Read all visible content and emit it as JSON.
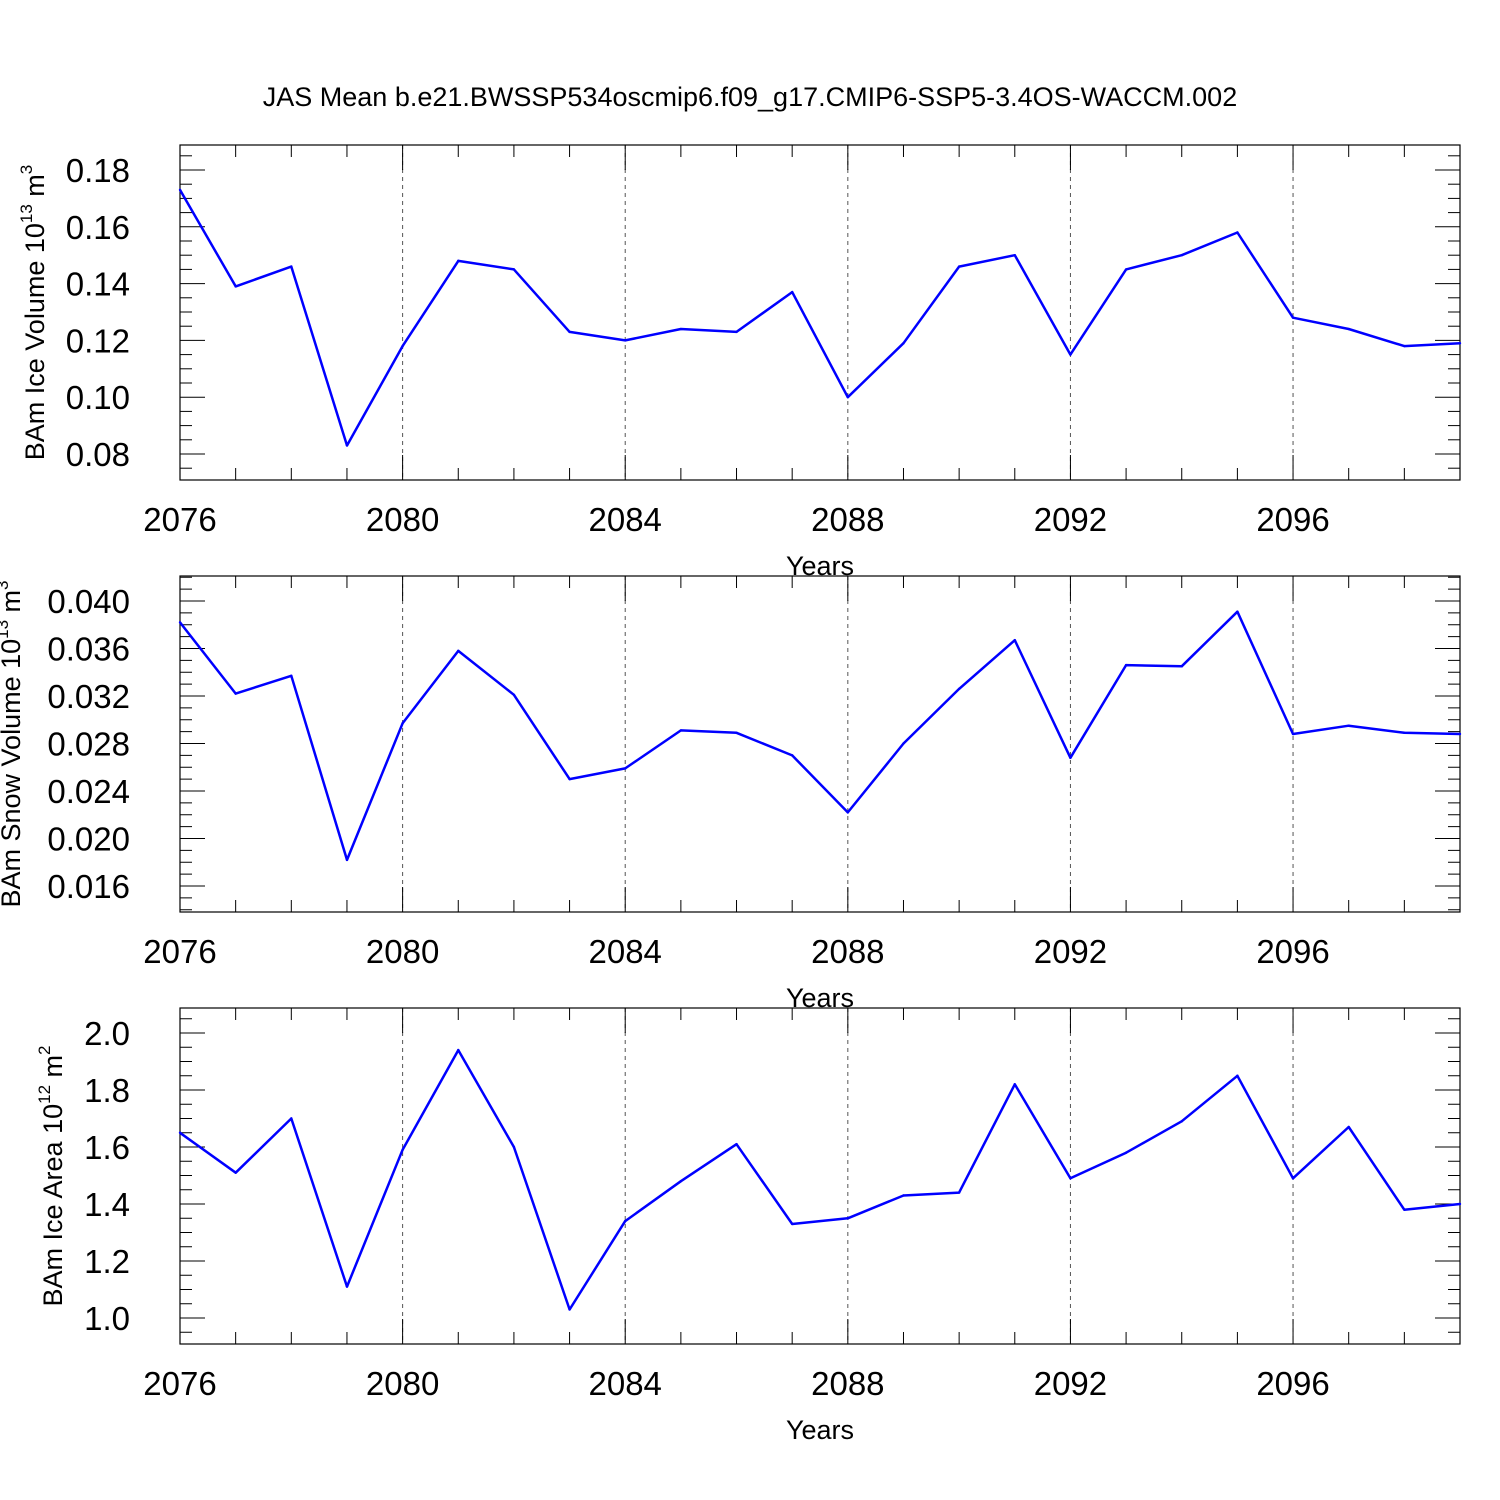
{
  "figure_title": "JAS Mean b.e21.BWSSP534oscmip6.f09_g17.CMIP6-SSP5-3.4OS-WACCM.002",
  "colors": {
    "series": "#0000ff",
    "axis": "#000000",
    "grid": "#555555"
  },
  "chart_data": [
    {
      "type": "line",
      "ylabel_main": "BAm Ice Volume 10",
      "ylabel_exp": "13",
      "ylabel_unit": " m",
      "ylabel_unit_exp": "3",
      "xlabel": "Years",
      "xlim": [
        2076,
        2099
      ],
      "ylim": [
        0.08,
        0.18
      ],
      "xticks": [
        2076,
        2080,
        2084,
        2088,
        2092,
        2096
      ],
      "xtick_labels": [
        "2076",
        "2080",
        "2084",
        "2088",
        "2092",
        "2096"
      ],
      "yticks": [
        0.08,
        0.1,
        0.12,
        0.14,
        0.16,
        0.18
      ],
      "ytick_labels": [
        "0.08",
        "0.10",
        "0.12",
        "0.14",
        "0.16",
        "0.18"
      ],
      "y_minor_step": 0.005,
      "grid": "vertical dashed at major x ticks",
      "x": [
        2076,
        2077,
        2078,
        2079,
        2080,
        2081,
        2082,
        2083,
        2084,
        2085,
        2086,
        2087,
        2088,
        2089,
        2090,
        2091,
        2092,
        2093,
        2094,
        2095,
        2096,
        2097,
        2098,
        2099
      ],
      "values": [
        0.173,
        0.139,
        0.146,
        0.083,
        0.118,
        0.148,
        0.145,
        0.123,
        0.12,
        0.124,
        0.123,
        0.137,
        0.1,
        0.119,
        0.146,
        0.15,
        0.115,
        0.145,
        0.15,
        0.158,
        0.128,
        0.124,
        0.118,
        0.119
      ]
    },
    {
      "type": "line",
      "ylabel_main": "BAm Snow Volume 10",
      "ylabel_exp": "13",
      "ylabel_unit": " m",
      "ylabel_unit_exp": "3",
      "xlabel": "Years",
      "xlim": [
        2076,
        2099
      ],
      "ylim": [
        0.016,
        0.04
      ],
      "xticks": [
        2076,
        2080,
        2084,
        2088,
        2092,
        2096
      ],
      "xtick_labels": [
        "2076",
        "2080",
        "2084",
        "2088",
        "2092",
        "2096"
      ],
      "yticks": [
        0.016,
        0.02,
        0.024,
        0.028,
        0.032,
        0.036,
        0.04
      ],
      "ytick_labels": [
        "0.016",
        "0.020",
        "0.024",
        "0.028",
        "0.032",
        "0.036",
        "0.040"
      ],
      "y_minor_step": 0.001,
      "grid": "vertical dashed at major x ticks",
      "x": [
        2076,
        2077,
        2078,
        2079,
        2080,
        2081,
        2082,
        2083,
        2084,
        2085,
        2086,
        2087,
        2088,
        2089,
        2090,
        2091,
        2092,
        2093,
        2094,
        2095,
        2096,
        2097,
        2098,
        2099
      ],
      "values": [
        0.0382,
        0.0322,
        0.0337,
        0.0182,
        0.0297,
        0.0358,
        0.0321,
        0.025,
        0.0259,
        0.0291,
        0.0289,
        0.027,
        0.0222,
        0.028,
        0.0326,
        0.0367,
        0.0268,
        0.0346,
        0.0345,
        0.0391,
        0.0288,
        0.0295,
        0.0289,
        0.0288
      ]
    },
    {
      "type": "line",
      "ylabel_main": "BAm Ice Area 10",
      "ylabel_exp": "12",
      "ylabel_unit": " m",
      "ylabel_unit_exp": "2",
      "xlabel": "Years",
      "xlim": [
        2076,
        2099
      ],
      "ylim": [
        1.0,
        2.0
      ],
      "xticks": [
        2076,
        2080,
        2084,
        2088,
        2092,
        2096
      ],
      "xtick_labels": [
        "2076",
        "2080",
        "2084",
        "2088",
        "2092",
        "2096"
      ],
      "yticks": [
        1.0,
        1.2,
        1.4,
        1.6,
        1.8,
        2.0
      ],
      "ytick_labels": [
        "1.0",
        "1.2",
        "1.4",
        "1.6",
        "1.8",
        "2.0"
      ],
      "y_minor_step": 0.05,
      "grid": "vertical dashed at major x ticks",
      "x": [
        2076,
        2077,
        2078,
        2079,
        2080,
        2081,
        2082,
        2083,
        2084,
        2085,
        2086,
        2087,
        2088,
        2089,
        2090,
        2091,
        2092,
        2093,
        2094,
        2095,
        2096,
        2097,
        2098,
        2099
      ],
      "values": [
        1.65,
        1.51,
        1.7,
        1.11,
        1.59,
        1.94,
        1.6,
        1.03,
        1.34,
        1.48,
        1.61,
        1.33,
        1.35,
        1.43,
        1.44,
        1.82,
        1.49,
        1.58,
        1.69,
        1.85,
        1.49,
        1.67,
        1.38,
        1.4
      ]
    }
  ]
}
